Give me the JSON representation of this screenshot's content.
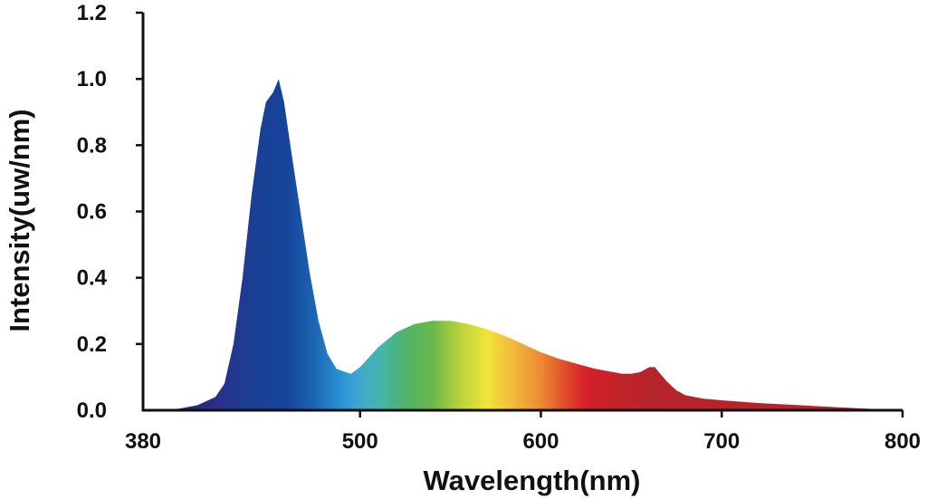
{
  "chart_data": {
    "type": "area",
    "title": "",
    "xlabel": "Wavelength(nm)",
    "ylabel": "Intensity(uw/nm)",
    "xlim": [
      380,
      800
    ],
    "ylim": [
      0,
      1.2
    ],
    "grid": false,
    "x_ticks": [
      {
        "value": 380,
        "label": "380"
      },
      {
        "value": 500,
        "label": "500"
      },
      {
        "value": 600,
        "label": "600"
      },
      {
        "value": 700,
        "label": "700"
      },
      {
        "value": 800,
        "label": "800"
      }
    ],
    "y_ticks": [
      {
        "value": 0.0,
        "label": "0.0"
      },
      {
        "value": 0.2,
        "label": "0.2"
      },
      {
        "value": 0.4,
        "label": "0.4"
      },
      {
        "value": 0.6,
        "label": "0.6"
      },
      {
        "value": 0.8,
        "label": "0.8"
      },
      {
        "value": 1.0,
        "label": "1.0"
      },
      {
        "value": 1.2,
        "label": "1.2"
      }
    ],
    "fill": "visible-spectrum gradient",
    "series": [
      {
        "points": [
          [
            380,
            0.0
          ],
          [
            400,
            0.005
          ],
          [
            410,
            0.015
          ],
          [
            420,
            0.04
          ],
          [
            425,
            0.08
          ],
          [
            430,
            0.2
          ],
          [
            435,
            0.4
          ],
          [
            440,
            0.65
          ],
          [
            445,
            0.85
          ],
          [
            448,
            0.93
          ],
          [
            452,
            0.96
          ],
          [
            455,
            1.0
          ],
          [
            458,
            0.93
          ],
          [
            462,
            0.78
          ],
          [
            467,
            0.6
          ],
          [
            472,
            0.42
          ],
          [
            477,
            0.27
          ],
          [
            482,
            0.17
          ],
          [
            487,
            0.125
          ],
          [
            492,
            0.115
          ],
          [
            495,
            0.11
          ],
          [
            500,
            0.13
          ],
          [
            510,
            0.19
          ],
          [
            520,
            0.235
          ],
          [
            530,
            0.26
          ],
          [
            540,
            0.27
          ],
          [
            550,
            0.27
          ],
          [
            560,
            0.26
          ],
          [
            570,
            0.245
          ],
          [
            580,
            0.225
          ],
          [
            590,
            0.2
          ],
          [
            600,
            0.175
          ],
          [
            610,
            0.155
          ],
          [
            620,
            0.14
          ],
          [
            630,
            0.125
          ],
          [
            640,
            0.115
          ],
          [
            645,
            0.11
          ],
          [
            650,
            0.11
          ],
          [
            655,
            0.115
          ],
          [
            660,
            0.13
          ],
          [
            663,
            0.13
          ],
          [
            666,
            0.11
          ],
          [
            670,
            0.085
          ],
          [
            675,
            0.06
          ],
          [
            680,
            0.045
          ],
          [
            690,
            0.035
          ],
          [
            700,
            0.03
          ],
          [
            720,
            0.022
          ],
          [
            740,
            0.016
          ],
          [
            760,
            0.01
          ],
          [
            780,
            0.005
          ],
          [
            800,
            0.0
          ]
        ]
      }
    ]
  }
}
